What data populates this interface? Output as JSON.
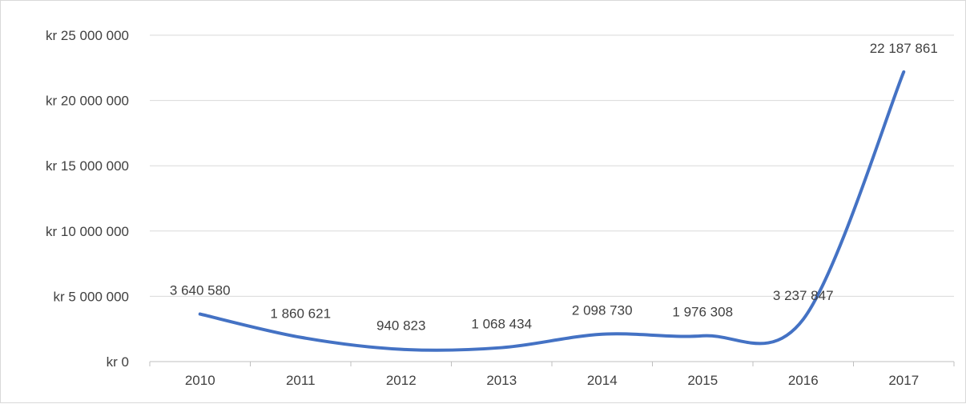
{
  "chart_data": {
    "type": "line",
    "smooth": true,
    "categories": [
      "2010",
      "2011",
      "2012",
      "2013",
      "2014",
      "2015",
      "2016",
      "2017"
    ],
    "series": [
      {
        "values": [
          3640580,
          1860621,
          940823,
          1068434,
          2098730,
          1976308,
          3237847,
          22187861
        ],
        "data_labels": [
          "3 640 580",
          "1 860 621",
          "940 823",
          "1 068 434",
          "2 098 730",
          "1 976 308",
          "3 237 847",
          "22 187 861"
        ],
        "color": "#4472c4"
      }
    ],
    "y_ticks": [
      0,
      5000000,
      10000000,
      15000000,
      20000000,
      25000000
    ],
    "y_tick_labels": [
      "kr 0",
      "kr 5 000 000",
      "kr 10 000 000",
      "kr 15 000 000",
      "kr 20 000 000",
      "kr 25 000 000"
    ],
    "ylim": [
      0,
      25000000
    ],
    "title": "",
    "xlabel": "",
    "ylabel": "",
    "grid": "horizontal",
    "legend": "none",
    "colors": {
      "line": "#4472c4",
      "grid": "#d9d9d9",
      "axis": "#bfbfbf",
      "text": "#404040"
    }
  }
}
